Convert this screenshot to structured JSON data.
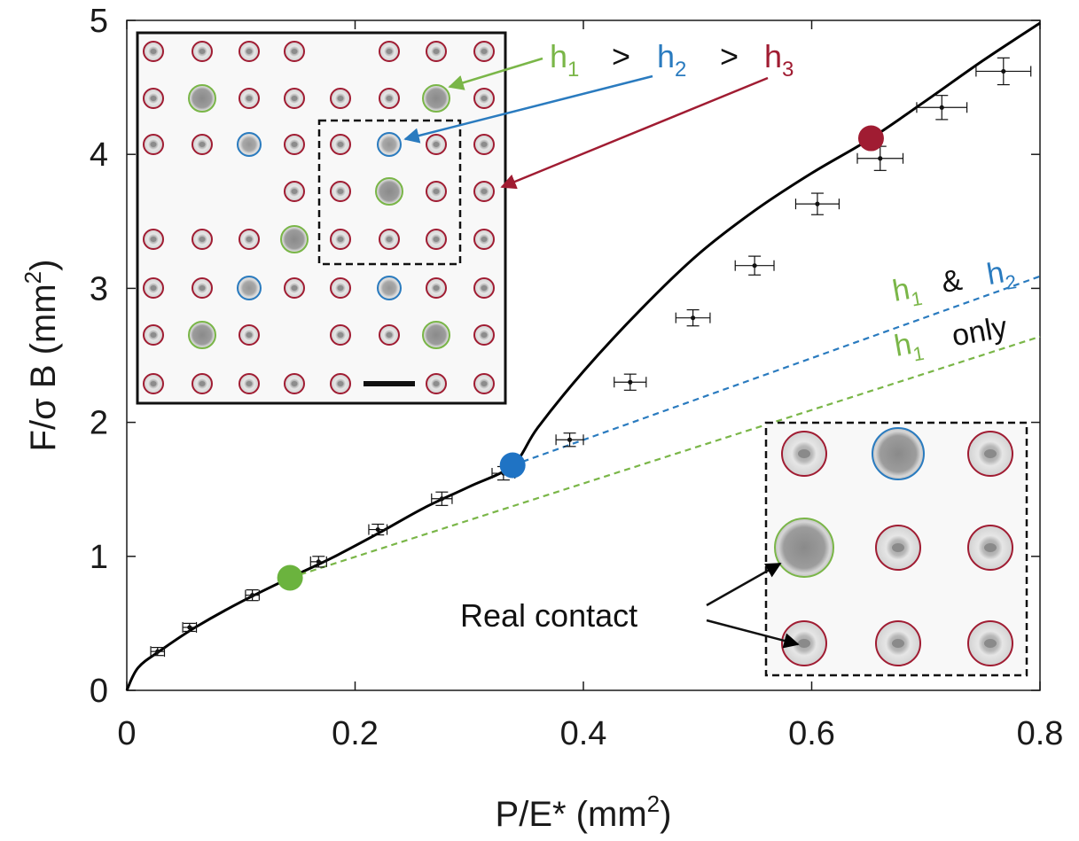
{
  "chart_data": {
    "type": "scatter",
    "xlabel": "P/E* (mm",
    "xlabel_sup": "2",
    "xlabel_end": ")",
    "ylabel": "F/σ B (mm",
    "ylabel_sup": "2",
    "ylabel_end": ")",
    "xlim": [
      0,
      0.8
    ],
    "ylim": [
      0,
      5
    ],
    "xticks": [
      0,
      0.2,
      0.4,
      0.6,
      0.8
    ],
    "xtick_labels": [
      "0",
      "0.2",
      "0.4",
      "0.6",
      "0.8"
    ],
    "yticks": [
      0,
      1,
      2,
      3,
      4,
      5
    ],
    "ytick_labels": [
      "0",
      "1",
      "2",
      "3",
      "4",
      "5"
    ],
    "grid": false,
    "series": [
      {
        "kind": "measured",
        "points": [
          {
            "x": 0.027,
            "y": 0.29,
            "xerr": 0.006,
            "yerr": 0.03
          },
          {
            "x": 0.055,
            "y": 0.47,
            "xerr": 0.006,
            "yerr": 0.03
          },
          {
            "x": 0.11,
            "y": 0.71,
            "xerr": 0.006,
            "yerr": 0.04
          },
          {
            "x": 0.168,
            "y": 0.96,
            "xerr": 0.007,
            "yerr": 0.04
          },
          {
            "x": 0.22,
            "y": 1.2,
            "xerr": 0.008,
            "yerr": 0.04
          },
          {
            "x": 0.276,
            "y": 1.43,
            "xerr": 0.009,
            "yerr": 0.05
          },
          {
            "x": 0.33,
            "y": 1.62,
            "xerr": 0.01,
            "yerr": 0.05
          },
          {
            "x": 0.388,
            "y": 1.87,
            "xerr": 0.012,
            "yerr": 0.05
          },
          {
            "x": 0.441,
            "y": 2.3,
            "xerr": 0.014,
            "yerr": 0.06
          },
          {
            "x": 0.496,
            "y": 2.78,
            "xerr": 0.015,
            "yerr": 0.06
          },
          {
            "x": 0.55,
            "y": 3.17,
            "xerr": 0.017,
            "yerr": 0.07
          },
          {
            "x": 0.605,
            "y": 3.63,
            "xerr": 0.019,
            "yerr": 0.08
          },
          {
            "x": 0.66,
            "y": 3.97,
            "xerr": 0.02,
            "yerr": 0.09
          },
          {
            "x": 0.714,
            "y": 4.35,
            "xerr": 0.022,
            "yerr": 0.09
          },
          {
            "x": 0.768,
            "y": 4.62,
            "xerr": 0.024,
            "yerr": 0.1
          }
        ]
      },
      {
        "kind": "model-solid",
        "color": "#000000",
        "x": [
          0.0,
          0.01,
          0.03,
          0.06,
          0.1,
          0.143,
          0.18,
          0.22,
          0.26,
          0.3,
          0.338,
          0.36,
          0.4,
          0.45,
          0.5,
          0.55,
          0.6,
          0.652,
          0.7,
          0.75,
          0.8
        ],
        "y": [
          0.0,
          0.17,
          0.3,
          0.47,
          0.66,
          0.84,
          0.99,
          1.17,
          1.36,
          1.52,
          1.68,
          1.96,
          2.38,
          2.84,
          3.25,
          3.58,
          3.86,
          4.12,
          4.4,
          4.7,
          4.98
        ]
      },
      {
        "kind": "model-dashed",
        "color": "#2a7bbf",
        "x": [
          0.338,
          0.8
        ],
        "y": [
          1.68,
          3.09
        ]
      },
      {
        "kind": "model-dashed",
        "color": "#7ab648",
        "x": [
          0.143,
          0.8
        ],
        "y": [
          0.84,
          2.64
        ]
      }
    ],
    "transition_markers": [
      {
        "x": 0.143,
        "y": 0.84,
        "color": "#6bb33e"
      },
      {
        "x": 0.338,
        "y": 1.68,
        "color": "#1f73c4"
      },
      {
        "x": 0.652,
        "y": 4.12,
        "color": "#a01c32"
      }
    ],
    "annotations": {
      "height_order": {
        "h1": "h",
        "h1_sub": "1",
        "gt1": ">",
        "h2": "h",
        "h2_sub": "2",
        "gt2": ">",
        "h3": "h",
        "h3_sub": "3"
      },
      "blue_line_label": {
        "h1": "h",
        "h1_sub": "1",
        "amp": "&",
        "h2": "h",
        "h2_sub": "2"
      },
      "green_line_label": {
        "h1": "h",
        "h1_sub": "1",
        "only": "only"
      },
      "contact_label": "Real contact"
    },
    "colors": {
      "green": "#7ab648",
      "blue": "#2a7bbf",
      "red": "#a01c32",
      "dot_green": "#6bb33e",
      "dot_blue": "#1f73c4",
      "dot_red": "#a01c32"
    }
  }
}
